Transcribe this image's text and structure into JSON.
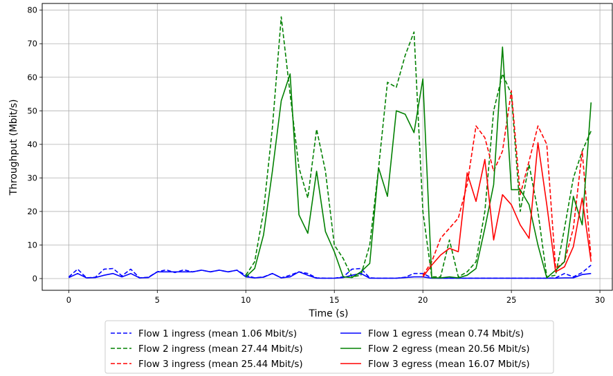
{
  "chart_data": {
    "type": "line",
    "title": "",
    "xlabel": "Time (s)",
    "ylabel": "Throughput (Mbit/s)",
    "xlim": [
      -1.5,
      30.7
    ],
    "ylim": [
      -3.5,
      82
    ],
    "xticks": [
      0,
      5,
      10,
      15,
      20,
      25,
      30
    ],
    "yticks": [
      0,
      10,
      20,
      30,
      40,
      50,
      60,
      70,
      80
    ],
    "grid": true,
    "legend_position": "below",
    "series": [
      {
        "name": "Flow 1 ingress (mean 1.06 Mbit/s)",
        "color": "#0000ff",
        "dash": "dashed",
        "x": [
          0,
          0.5,
          1,
          1.5,
          2,
          2.5,
          3,
          3.5,
          4,
          4.5,
          5,
          5.5,
          6,
          6.5,
          7,
          7.5,
          8,
          8.5,
          9,
          9.5,
          10,
          10.5,
          11,
          11.5,
          12,
          12.5,
          13,
          13.5,
          14,
          14.5,
          15,
          15.5,
          16,
          16.5,
          17,
          17.5,
          18,
          18.5,
          19,
          19.5,
          20,
          20.5,
          21,
          21.5,
          22,
          22.5,
          23,
          23.5,
          24,
          24.5,
          25,
          25.5,
          26,
          26.5,
          27,
          27.5,
          28,
          28.5,
          29,
          29.5
        ],
        "y": [
          0.5,
          2.8,
          0.2,
          0.4,
          2.8,
          3.0,
          0.8,
          2.8,
          0.2,
          0.4,
          2.0,
          2.6,
          1.8,
          2.6,
          2.0,
          2.5,
          2.0,
          2.5,
          2.0,
          2.5,
          1.0,
          0.2,
          0.5,
          1.5,
          0.2,
          1.0,
          2.0,
          1.5,
          0.2,
          0.1,
          0.1,
          0.5,
          2.8,
          3.0,
          0.2,
          0.1,
          0.1,
          0.1,
          0.4,
          1.5,
          1.5,
          0.2,
          0.1,
          0.1,
          0.1,
          0.1,
          0.1,
          0.1,
          0.1,
          0.1,
          0.1,
          0.1,
          0.1,
          0.1,
          0.1,
          0.2,
          1.5,
          0.5,
          1.8,
          4.0
        ]
      },
      {
        "name": "Flow 2 ingress (mean 27.44 Mbit/s)",
        "color": "#008000",
        "dash": "dashed",
        "x": [
          10,
          10.5,
          11,
          11.5,
          12,
          12.5,
          13,
          13.5,
          14,
          14.5,
          15,
          15.5,
          16,
          16.5,
          17,
          17.5,
          18,
          18.5,
          19,
          19.5,
          20,
          20.5,
          21,
          21.5,
          22,
          22.5,
          23,
          23.5,
          24,
          24.5,
          25,
          25.5,
          26,
          26.5,
          27,
          27.5,
          28,
          28.5,
          29,
          29.5
        ],
        "y": [
          1.0,
          5.0,
          20.0,
          45.0,
          78.0,
          55.0,
          33.0,
          24.0,
          44.5,
          32.0,
          10.0,
          6.0,
          0.5,
          1.0,
          10.0,
          33.0,
          58.5,
          57.0,
          66.5,
          73.5,
          20.0,
          0.5,
          0.5,
          11.5,
          0.5,
          2.0,
          5.0,
          20.0,
          50.0,
          61.0,
          55.0,
          20.0,
          34.0,
          20.0,
          0.5,
          1.0,
          15.0,
          30.0,
          38.0,
          44.0
        ]
      },
      {
        "name": "Flow 3 ingress (mean 25.44 Mbit/s)",
        "color": "#ff0000",
        "dash": "dashed",
        "x": [
          20,
          20.5,
          21,
          21.5,
          22,
          22.5,
          23,
          23.5,
          24,
          24.5,
          25,
          25.5,
          26,
          26.5,
          27,
          27.5,
          28,
          28.5,
          29,
          29.5
        ],
        "y": [
          1.0,
          5.0,
          12.0,
          15.0,
          18.0,
          28.0,
          45.5,
          42.0,
          32.0,
          38.0,
          56.0,
          25.0,
          35.0,
          45.5,
          40.0,
          3.0,
          5.0,
          15.0,
          38.0,
          6.0
        ]
      },
      {
        "name": "Flow 1 egress (mean 0.74 Mbit/s)",
        "color": "#0000ff",
        "dash": "solid",
        "x": [
          0,
          0.5,
          1,
          1.5,
          2,
          2.5,
          3,
          3.5,
          4,
          4.5,
          5,
          5.5,
          6,
          6.5,
          7,
          7.5,
          8,
          8.5,
          9,
          9.5,
          10,
          10.5,
          11,
          11.5,
          12,
          12.5,
          13,
          13.5,
          14,
          14.5,
          15,
          15.5,
          16,
          16.5,
          17,
          17.5,
          18,
          18.5,
          19,
          19.5,
          20,
          20.5,
          21,
          21.5,
          22,
          22.5,
          23,
          23.5,
          24,
          24.5,
          25,
          25.5,
          26,
          26.5,
          27,
          27.5,
          28,
          28.5,
          29,
          29.5
        ],
        "y": [
          0.3,
          1.5,
          0.2,
          0.3,
          1.0,
          1.5,
          0.5,
          1.5,
          0.2,
          0.3,
          2.0,
          2.0,
          2.0,
          2.0,
          2.0,
          2.5,
          2.0,
          2.5,
          2.0,
          2.5,
          0.5,
          0.2,
          0.4,
          1.5,
          0.2,
          0.5,
          2.0,
          1.0,
          0.1,
          0.1,
          0.1,
          0.3,
          1.0,
          1.5,
          0.1,
          0.1,
          0.1,
          0.1,
          0.3,
          0.5,
          0.5,
          0.1,
          0.1,
          0.1,
          0.1,
          0.1,
          0.1,
          0.1,
          0.1,
          0.1,
          0.1,
          0.1,
          0.1,
          0.1,
          0.1,
          0.1,
          0.2,
          0.2,
          1.2,
          1.5
        ]
      },
      {
        "name": "Flow 2 egress (mean 20.56 Mbit/s)",
        "color": "#008000",
        "dash": "solid",
        "x": [
          10,
          10.5,
          11,
          11.5,
          12,
          12.5,
          13,
          13.5,
          14,
          14.5,
          15,
          15.5,
          16,
          16.5,
          17,
          17.5,
          18,
          18.5,
          19,
          19.5,
          20,
          20.5,
          21,
          21.5,
          22,
          22.5,
          23,
          23.5,
          24,
          24.5,
          25,
          25.5,
          26,
          26.5,
          27,
          27.5,
          28,
          28.5,
          29,
          29.5
        ],
        "y": [
          0.5,
          3.0,
          13.0,
          32.0,
          53.0,
          61.0,
          19.0,
          13.5,
          32.0,
          14.0,
          8.0,
          0.5,
          0.3,
          2.0,
          4.5,
          33.0,
          24.5,
          50.0,
          49.0,
          43.5,
          59.5,
          0.2,
          0.2,
          0.5,
          0.2,
          1.0,
          3.0,
          15.0,
          28.0,
          69.0,
          26.5,
          26.5,
          22.0,
          10.0,
          0.2,
          2.5,
          5.0,
          24.5,
          16.0,
          52.5
        ]
      },
      {
        "name": "Flow 3 egress (mean 16.07 Mbit/s)",
        "color": "#ff0000",
        "dash": "solid",
        "x": [
          20,
          20.5,
          21,
          21.5,
          22,
          22.5,
          23,
          23.5,
          24,
          24.5,
          25,
          25.5,
          26,
          26.5,
          27,
          27.5,
          28,
          28.5,
          29,
          29.5
        ],
        "y": [
          0.5,
          4.0,
          7.0,
          9.0,
          8.0,
          31.5,
          23.0,
          35.5,
          11.5,
          25.0,
          22.0,
          16.0,
          12.0,
          40.5,
          22.0,
          2.0,
          3.5,
          9.5,
          24.0,
          5.0
        ]
      }
    ]
  }
}
